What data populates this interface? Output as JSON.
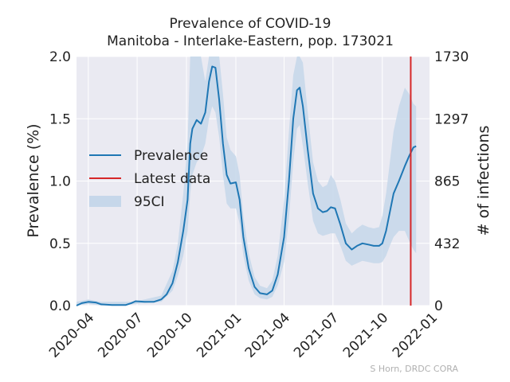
{
  "chart_data": {
    "type": "line",
    "title_line1": "Prevalence of COVID-19",
    "title_line2": "Manitoba - Interlake-Eastern, pop. 173021",
    "ylabel_left": "Prevalence (%)",
    "ylabel_right": "# of infections",
    "credit": "S Horn, DRDC CORA",
    "ylim": [
      0,
      2.0
    ],
    "xlim": [
      "2020-03-10",
      "2021-12-28"
    ],
    "yticks_left": [
      {
        "value": 0.0,
        "label": "0.0"
      },
      {
        "value": 0.5,
        "label": "0.5"
      },
      {
        "value": 1.0,
        "label": "1.0"
      },
      {
        "value": 1.5,
        "label": "1.5"
      },
      {
        "value": 2.0,
        "label": "2.0"
      }
    ],
    "yticks_right": [
      {
        "value": 0.0,
        "label": "0"
      },
      {
        "value": 0.5,
        "label": "432"
      },
      {
        "value": 1.0,
        "label": "865"
      },
      {
        "value": 1.5,
        "label": "1297"
      },
      {
        "value": 2.0,
        "label": "1730"
      }
    ],
    "xticks": [
      {
        "date": "2020-04-01",
        "label": "2020-04"
      },
      {
        "date": "2020-07-01",
        "label": "2020-07"
      },
      {
        "date": "2020-10-01",
        "label": "2020-10"
      },
      {
        "date": "2021-01-01",
        "label": "2021-01"
      },
      {
        "date": "2021-04-01",
        "label": "2021-04"
      },
      {
        "date": "2021-07-01",
        "label": "2021-07"
      },
      {
        "date": "2021-10-01",
        "label": "2021-10"
      },
      {
        "date": "2022-01-01",
        "label": "2022-01"
      }
    ],
    "legend": {
      "placement": "center-left",
      "entries": [
        {
          "label": "Prevalence",
          "kind": "line",
          "color": "#1f77b4"
        },
        {
          "label": "Latest data",
          "kind": "line",
          "color": "#d62728"
        },
        {
          "label": "95CI",
          "kind": "patch",
          "color": "#c6d7ea"
        }
      ]
    },
    "latest_data_date": "2021-11-23",
    "series": [
      {
        "name": "Prevalence",
        "color": "#1f77b4",
        "points": [
          [
            "2020-03-10",
            0.0
          ],
          [
            "2020-03-20",
            0.02
          ],
          [
            "2020-04-01",
            0.03
          ],
          [
            "2020-04-15",
            0.025
          ],
          [
            "2020-04-25",
            0.01
          ],
          [
            "2020-05-15",
            0.005
          ],
          [
            "2020-06-10",
            0.005
          ],
          [
            "2020-06-20",
            0.02
          ],
          [
            "2020-06-28",
            0.035
          ],
          [
            "2020-07-15",
            0.03
          ],
          [
            "2020-08-01",
            0.03
          ],
          [
            "2020-08-15",
            0.05
          ],
          [
            "2020-08-25",
            0.09
          ],
          [
            "2020-09-05",
            0.18
          ],
          [
            "2020-09-15",
            0.35
          ],
          [
            "2020-09-25",
            0.6
          ],
          [
            "2020-10-03",
            0.85
          ],
          [
            "2020-10-08",
            1.3
          ],
          [
            "2020-10-12",
            1.42
          ],
          [
            "2020-10-20",
            1.49
          ],
          [
            "2020-10-28",
            1.46
          ],
          [
            "2020-11-05",
            1.55
          ],
          [
            "2020-11-12",
            1.8
          ],
          [
            "2020-11-18",
            1.92
          ],
          [
            "2020-11-24",
            1.91
          ],
          [
            "2020-12-01",
            1.65
          ],
          [
            "2020-12-08",
            1.3
          ],
          [
            "2020-12-15",
            1.05
          ],
          [
            "2020-12-22",
            0.98
          ],
          [
            "2021-01-01",
            0.99
          ],
          [
            "2021-01-08",
            0.85
          ],
          [
            "2021-01-15",
            0.55
          ],
          [
            "2021-01-25",
            0.3
          ],
          [
            "2021-02-05",
            0.15
          ],
          [
            "2021-02-15",
            0.1
          ],
          [
            "2021-02-28",
            0.09
          ],
          [
            "2021-03-10",
            0.12
          ],
          [
            "2021-03-20",
            0.25
          ],
          [
            "2021-04-01",
            0.55
          ],
          [
            "2021-04-10",
            1.0
          ],
          [
            "2021-04-18",
            1.5
          ],
          [
            "2021-04-25",
            1.73
          ],
          [
            "2021-04-30",
            1.75
          ],
          [
            "2021-05-06",
            1.6
          ],
          [
            "2021-05-15",
            1.25
          ],
          [
            "2021-05-25",
            0.9
          ],
          [
            "2021-06-03",
            0.78
          ],
          [
            "2021-06-12",
            0.75
          ],
          [
            "2021-06-20",
            0.76
          ],
          [
            "2021-06-27",
            0.79
          ],
          [
            "2021-07-05",
            0.78
          ],
          [
            "2021-07-15",
            0.65
          ],
          [
            "2021-07-25",
            0.5
          ],
          [
            "2021-08-05",
            0.45
          ],
          [
            "2021-08-15",
            0.48
          ],
          [
            "2021-08-25",
            0.5
          ],
          [
            "2021-09-05",
            0.49
          ],
          [
            "2021-09-15",
            0.48
          ],
          [
            "2021-09-25",
            0.48
          ],
          [
            "2021-10-01",
            0.5
          ],
          [
            "2021-10-08",
            0.6
          ],
          [
            "2021-10-15",
            0.75
          ],
          [
            "2021-10-22",
            0.9
          ],
          [
            "2021-11-01",
            1.0
          ],
          [
            "2021-11-12",
            1.12
          ],
          [
            "2021-11-20",
            1.2
          ],
          [
            "2021-11-28",
            1.27
          ],
          [
            "2021-12-03",
            1.28
          ]
        ]
      }
    ],
    "ci_band": {
      "name": "95CI",
      "color": "#c6d7ea",
      "upper": [
        [
          "2020-03-10",
          0.03
        ],
        [
          "2020-04-01",
          0.05
        ],
        [
          "2020-04-25",
          0.03
        ],
        [
          "2020-06-20",
          0.03
        ],
        [
          "2020-07-15",
          0.05
        ],
        [
          "2020-08-15",
          0.08
        ],
        [
          "2020-09-05",
          0.28
        ],
        [
          "2020-09-15",
          0.5
        ],
        [
          "2020-09-25",
          0.9
        ],
        [
          "2020-10-03",
          1.3
        ],
        [
          "2020-10-08",
          2.0
        ],
        [
          "2020-10-12",
          2.0
        ],
        [
          "2020-10-28",
          2.0
        ],
        [
          "2020-11-05",
          1.8
        ],
        [
          "2020-11-12",
          2.0
        ],
        [
          "2020-12-01",
          2.0
        ],
        [
          "2020-12-08",
          1.7
        ],
        [
          "2020-12-15",
          1.35
        ],
        [
          "2020-12-22",
          1.25
        ],
        [
          "2021-01-01",
          1.2
        ],
        [
          "2021-01-08",
          1.05
        ],
        [
          "2021-01-15",
          0.72
        ],
        [
          "2021-01-25",
          0.42
        ],
        [
          "2021-02-05",
          0.23
        ],
        [
          "2021-02-15",
          0.16
        ],
        [
          "2021-02-28",
          0.14
        ],
        [
          "2021-03-10",
          0.2
        ],
        [
          "2021-03-20",
          0.4
        ],
        [
          "2021-04-01",
          0.85
        ],
        [
          "2021-04-10",
          1.4
        ],
        [
          "2021-04-18",
          1.85
        ],
        [
          "2021-04-25",
          2.0
        ],
        [
          "2021-04-30",
          2.0
        ],
        [
          "2021-05-06",
          1.95
        ],
        [
          "2021-05-15",
          1.55
        ],
        [
          "2021-05-25",
          1.15
        ],
        [
          "2021-06-03",
          1.0
        ],
        [
          "2021-06-12",
          0.95
        ],
        [
          "2021-06-20",
          0.97
        ],
        [
          "2021-06-27",
          1.05
        ],
        [
          "2021-07-05",
          1.0
        ],
        [
          "2021-07-15",
          0.85
        ],
        [
          "2021-07-25",
          0.66
        ],
        [
          "2021-08-05",
          0.58
        ],
        [
          "2021-08-15",
          0.62
        ],
        [
          "2021-08-25",
          0.65
        ],
        [
          "2021-09-05",
          0.63
        ],
        [
          "2021-09-15",
          0.62
        ],
        [
          "2021-09-25",
          0.63
        ],
        [
          "2021-10-01",
          0.72
        ],
        [
          "2021-10-08",
          0.9
        ],
        [
          "2021-10-15",
          1.15
        ],
        [
          "2021-10-22",
          1.4
        ],
        [
          "2021-11-01",
          1.6
        ],
        [
          "2021-11-12",
          1.75
        ],
        [
          "2021-11-20",
          1.7
        ],
        [
          "2021-11-28",
          1.62
        ],
        [
          "2021-12-03",
          1.6
        ]
      ],
      "lower": [
        [
          "2020-03-10",
          0.0
        ],
        [
          "2020-04-01",
          0.015
        ],
        [
          "2020-04-25",
          0.0
        ],
        [
          "2020-06-20",
          0.01
        ],
        [
          "2020-07-15",
          0.02
        ],
        [
          "2020-08-15",
          0.03
        ],
        [
          "2020-09-05",
          0.12
        ],
        [
          "2020-09-15",
          0.24
        ],
        [
          "2020-09-25",
          0.4
        ],
        [
          "2020-10-03",
          0.6
        ],
        [
          "2020-10-08",
          0.9
        ],
        [
          "2020-10-12",
          1.05
        ],
        [
          "2020-10-20",
          1.15
        ],
        [
          "2020-10-28",
          1.2
        ],
        [
          "2020-11-05",
          1.3
        ],
        [
          "2020-11-12",
          1.5
        ],
        [
          "2020-11-18",
          1.6
        ],
        [
          "2020-11-24",
          1.55
        ],
        [
          "2020-12-01",
          1.35
        ],
        [
          "2020-12-08",
          1.05
        ],
        [
          "2020-12-15",
          0.82
        ],
        [
          "2020-12-22",
          0.78
        ],
        [
          "2021-01-01",
          0.78
        ],
        [
          "2021-01-08",
          0.66
        ],
        [
          "2021-01-15",
          0.4
        ],
        [
          "2021-01-25",
          0.2
        ],
        [
          "2021-02-05",
          0.09
        ],
        [
          "2021-02-15",
          0.06
        ],
        [
          "2021-02-28",
          0.05
        ],
        [
          "2021-03-10",
          0.07
        ],
        [
          "2021-03-20",
          0.16
        ],
        [
          "2021-04-01",
          0.35
        ],
        [
          "2021-04-10",
          0.7
        ],
        [
          "2021-04-18",
          1.15
        ],
        [
          "2021-04-25",
          1.42
        ],
        [
          "2021-04-30",
          1.45
        ],
        [
          "2021-05-06",
          1.28
        ],
        [
          "2021-05-15",
          0.98
        ],
        [
          "2021-05-25",
          0.68
        ],
        [
          "2021-06-03",
          0.58
        ],
        [
          "2021-06-12",
          0.56
        ],
        [
          "2021-06-20",
          0.57
        ],
        [
          "2021-06-27",
          0.58
        ],
        [
          "2021-07-05",
          0.58
        ],
        [
          "2021-07-15",
          0.48
        ],
        [
          "2021-07-25",
          0.36
        ],
        [
          "2021-08-05",
          0.32
        ],
        [
          "2021-08-15",
          0.34
        ],
        [
          "2021-08-25",
          0.36
        ],
        [
          "2021-09-05",
          0.35
        ],
        [
          "2021-09-15",
          0.34
        ],
        [
          "2021-09-25",
          0.34
        ],
        [
          "2021-10-01",
          0.35
        ],
        [
          "2021-10-08",
          0.4
        ],
        [
          "2021-10-15",
          0.48
        ],
        [
          "2021-10-22",
          0.55
        ],
        [
          "2021-11-01",
          0.6
        ],
        [
          "2021-11-12",
          0.6
        ],
        [
          "2021-11-20",
          0.52
        ],
        [
          "2021-11-28",
          0.45
        ],
        [
          "2021-12-03",
          0.42
        ]
      ]
    }
  }
}
